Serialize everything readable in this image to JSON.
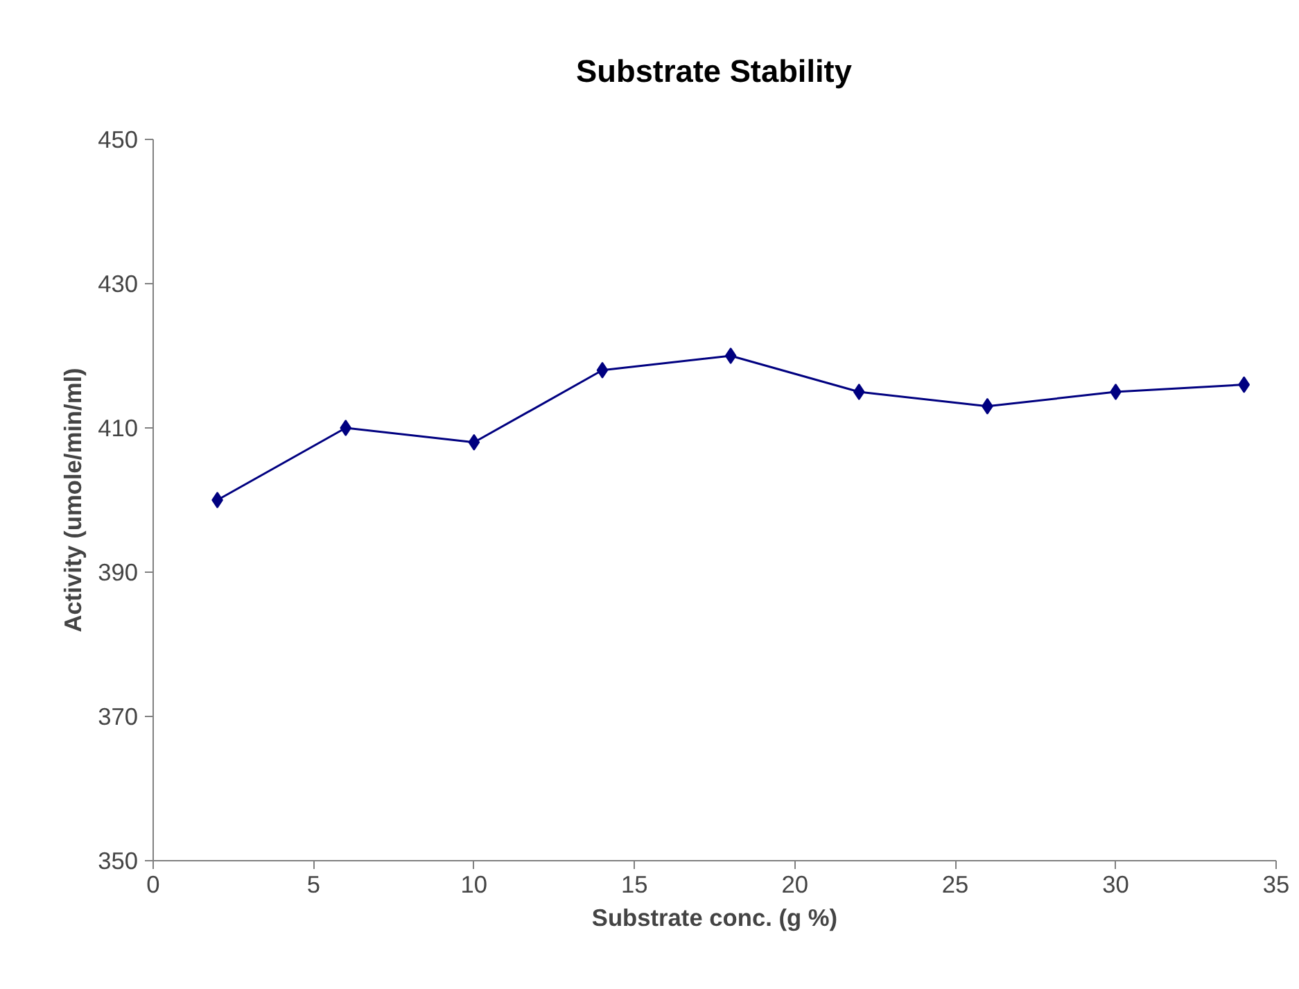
{
  "chart_data": {
    "type": "line",
    "title": "Substrate Stability",
    "xlabel": "Substrate conc. (g %)",
    "ylabel": "Activity (umole/min/ml)",
    "x": [
      2,
      6,
      10,
      14,
      18,
      22,
      26,
      30,
      34
    ],
    "series": [
      {
        "color": "#000080",
        "values": [
          400,
          410,
          408,
          418,
          420,
          415,
          413,
          415,
          416
        ]
      }
    ],
    "xlim": [
      0,
      35
    ],
    "xticks": [
      0,
      5,
      10,
      15,
      20,
      25,
      30,
      35
    ],
    "ylim": [
      350,
      450
    ],
    "yticks": [
      350,
      370,
      390,
      410,
      430,
      450
    ],
    "grid": false,
    "marker": "diamond",
    "line_style": "solid"
  }
}
